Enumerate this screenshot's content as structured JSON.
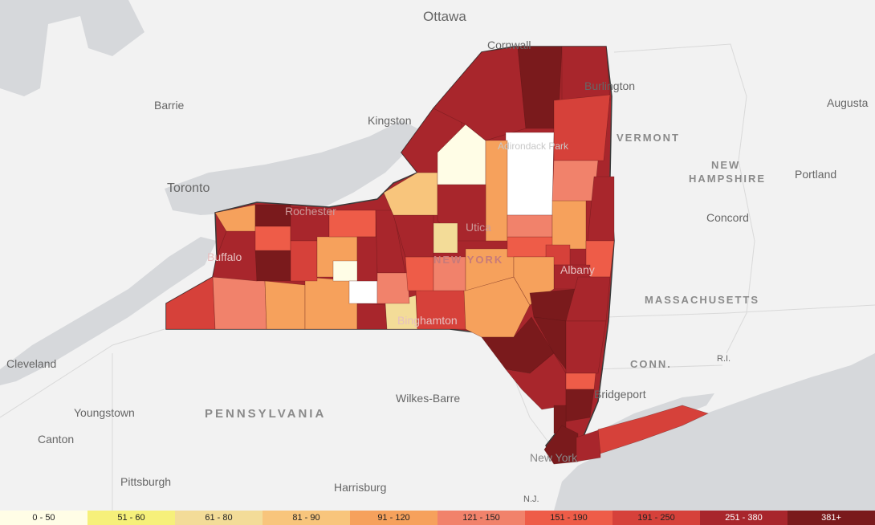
{
  "map": {
    "labels": {
      "ottawa": "Ottawa",
      "cornwall": "Cornwall",
      "burlington": "Burlington",
      "augusta": "Augusta",
      "barrie": "Barrie",
      "kingston": "Kingston",
      "vermont": "VERMONT",
      "adirondack": "Adirondack Park",
      "new_hampshire_1": "NEW",
      "new_hampshire_2": "HAMPSHIRE",
      "portland": "Portland",
      "toronto": "Toronto",
      "rochester": "Rochester",
      "utica": "Utica",
      "concord": "Concord",
      "buffalo": "Buffalo",
      "new_york_state": "NEW YORK",
      "albany": "Albany",
      "massachusetts": "MASSACHUSETTS",
      "binghamton": "Binghamton",
      "ri": "R.I.",
      "cleveland": "Cleveland",
      "conn": "CONN.",
      "bridgeport": "Bridgeport",
      "wilkes_barre": "Wilkes-Barre",
      "youngstown": "Youngstown",
      "pennsylvania": "PENNSYLVANIA",
      "canton": "Canton",
      "new_york_city": "New York",
      "pittsburgh": "Pittsburgh",
      "harrisburg": "Harrisburg",
      "nj": "N.J."
    }
  },
  "legend": [
    {
      "label": "0 - 50",
      "color": "#fffde6"
    },
    {
      "label": "51 - 60",
      "color": "#f6f07a"
    },
    {
      "label": "61 - 80",
      "color": "#f3dc98"
    },
    {
      "label": "81 - 90",
      "color": "#f8c57c"
    },
    {
      "label": "91 - 120",
      "color": "#f6a15c"
    },
    {
      "label": "121 - 150",
      "color": "#f1826b"
    },
    {
      "label": "151 - 190",
      "color": "#ee5c48"
    },
    {
      "label": "191 - 250",
      "color": "#d6413a"
    },
    {
      "label": "251 - 380",
      "color": "#a8262c"
    },
    {
      "label": "381+",
      "color": "#7a1a1c"
    }
  ]
}
